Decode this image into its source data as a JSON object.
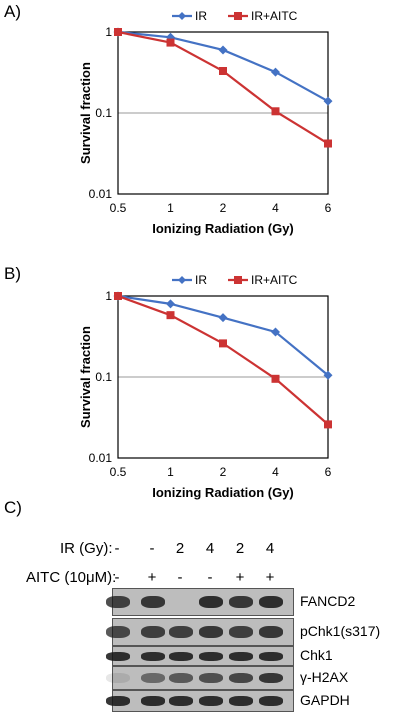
{
  "panels": [
    {
      "label": "A)",
      "chart_data": {
        "type": "line",
        "x": [
          "0.5",
          "1",
          "2",
          "4",
          "6"
        ],
        "xlabel": "Ionizing Radiation (Gy)",
        "ylabel": "Survival fraction",
        "yscale": "log",
        "ylim": [
          0.01,
          1
        ],
        "yticks": [
          "1",
          "0.1",
          "0.01"
        ],
        "grid": "horizontal at 0.1",
        "legend": "top",
        "series": [
          {
            "name": "IR",
            "color": "#4472c4",
            "marker": "diamond",
            "values": [
              1.0,
              0.86,
              0.6,
              0.32,
              0.14
            ]
          },
          {
            "name": "IR+AITC",
            "color": "#cc3333",
            "marker": "square",
            "values": [
              1.0,
              0.74,
              0.33,
              0.105,
              0.042
            ]
          }
        ]
      }
    },
    {
      "label": "B)",
      "chart_data": {
        "type": "line",
        "x": [
          "0.5",
          "1",
          "2",
          "4",
          "6"
        ],
        "xlabel": "Ionizing Radiation (Gy)",
        "ylabel": "Survival fraction",
        "yscale": "log",
        "ylim": [
          0.01,
          1
        ],
        "yticks": [
          "1",
          "0.1",
          "0.01"
        ],
        "grid": "horizontal at 0.1",
        "legend": "top",
        "series": [
          {
            "name": "IR",
            "color": "#4472c4",
            "marker": "diamond",
            "values": [
              1.0,
              0.8,
              0.54,
              0.36,
              0.105
            ]
          },
          {
            "name": "IR+AITC",
            "color": "#cc3333",
            "marker": "square",
            "values": [
              1.0,
              0.58,
              0.26,
              0.095,
              0.026
            ]
          }
        ]
      }
    }
  ],
  "blot": {
    "label": "C)",
    "ir_label": "IR (Gy):",
    "aitc_label": "AITC (10μM):",
    "ir_values": [
      "-",
      "-",
      "2",
      "4",
      "2",
      "4"
    ],
    "aitc_values": [
      "-",
      "+",
      "-",
      "-",
      "+",
      "+"
    ],
    "bands": [
      {
        "name": "FANCD2",
        "intensity": [
          0.75,
          0.8,
          0.0,
          0.85,
          0.8,
          0.85
        ]
      },
      {
        "name": "pChk1(s317)",
        "intensity": [
          0.7,
          0.75,
          0.75,
          0.8,
          0.75,
          0.8
        ]
      },
      {
        "name": "Chk1",
        "intensity": [
          0.85,
          0.85,
          0.85,
          0.85,
          0.85,
          0.85
        ]
      },
      {
        "name": "γ-H2AX",
        "intensity": [
          0.1,
          0.5,
          0.6,
          0.65,
          0.7,
          0.8
        ]
      },
      {
        "name": "GAPDH",
        "intensity": [
          0.85,
          0.85,
          0.85,
          0.85,
          0.85,
          0.85
        ]
      }
    ],
    "gel_color": "#bdbdbd",
    "band_color": "#141414"
  }
}
